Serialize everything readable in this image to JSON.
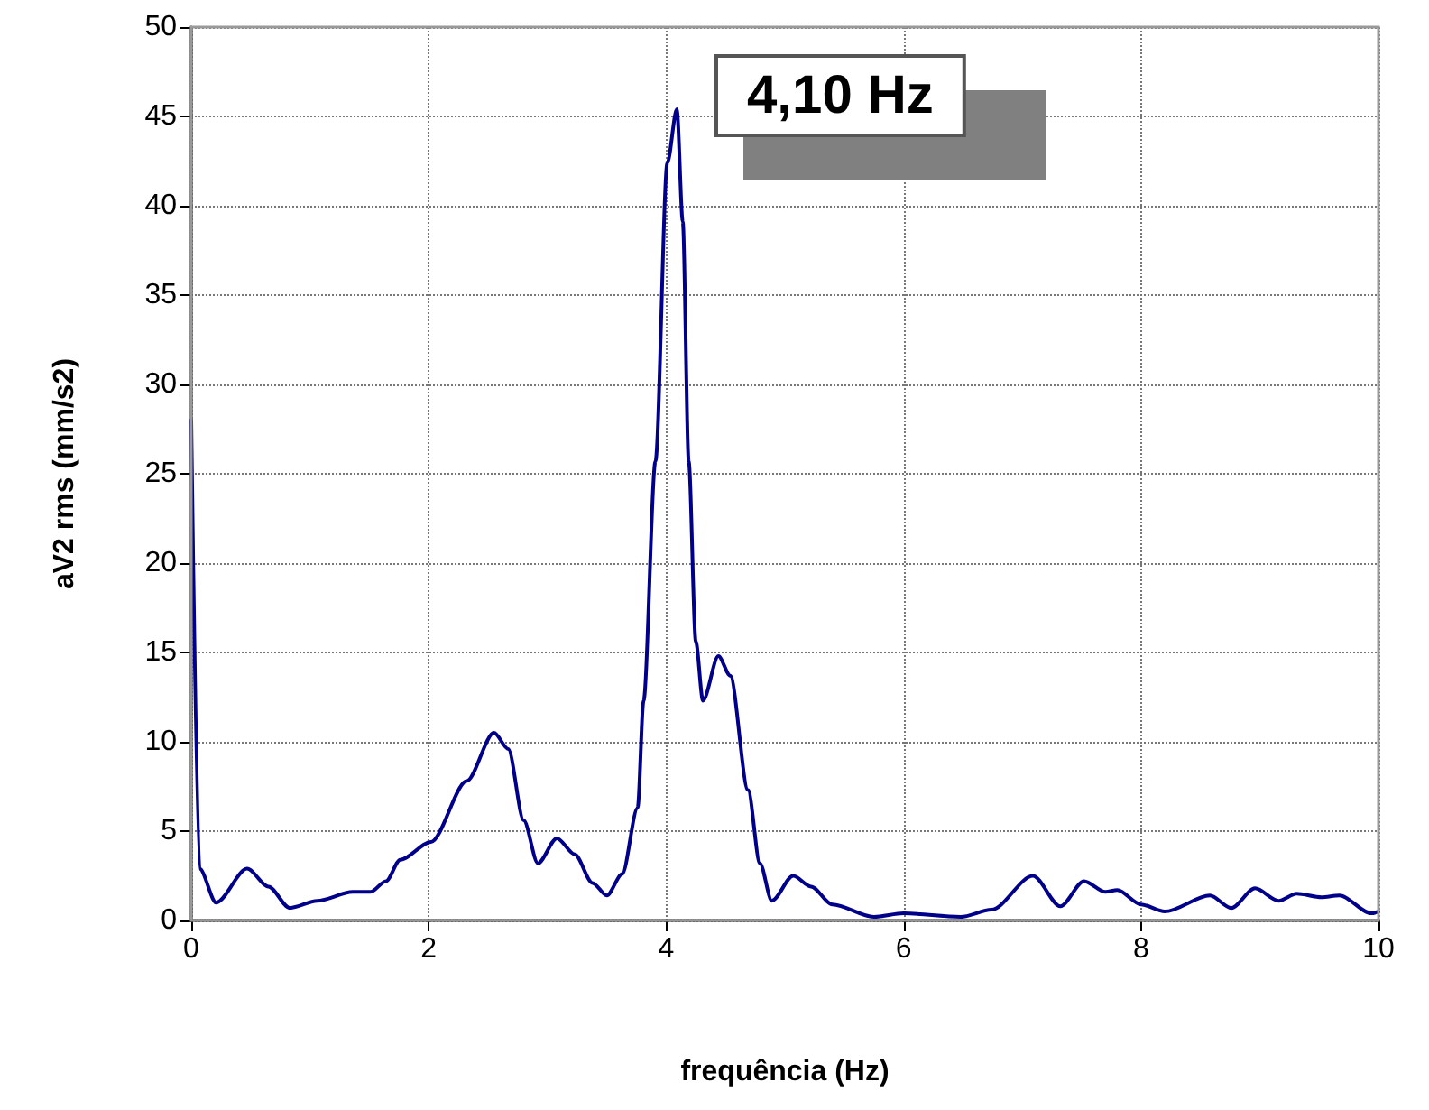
{
  "chart_data": {
    "type": "line",
    "xlabel": "frequência (Hz)",
    "ylabel": "aV2 rms (mm/s2)",
    "annotations": [
      "4,10 Hz"
    ],
    "series": [
      {
        "color": "#00008b",
        "x": [
          0,
          0.07,
          0.21,
          0.47,
          0.65,
          0.83,
          1.06,
          1.36,
          1.51,
          1.64,
          1.76,
          2.02,
          2.32,
          2.55,
          2.67,
          2.8,
          2.92,
          3.08,
          3.23,
          3.38,
          3.5,
          3.63,
          3.76,
          3.81,
          3.91,
          4.01,
          4.09,
          4.14,
          4.19,
          4.25,
          4.31,
          4.44,
          4.54,
          4.69,
          4.79,
          4.89,
          5.07,
          5.22,
          5.4,
          5.75,
          6,
          6.48,
          6.74,
          7.09,
          7.32,
          7.52,
          7.7,
          7.8,
          8,
          8.2,
          8.58,
          8.76,
          8.96,
          9.16,
          9.31,
          9.52,
          9.67,
          9.94,
          10
        ],
        "values": [
          28,
          2.9,
          1,
          2.9,
          1.9,
          0.7,
          1.1,
          1.6,
          1.6,
          2.2,
          3.4,
          4.4,
          7.8,
          10.5,
          9.6,
          5.6,
          3.2,
          4.6,
          3.7,
          2.1,
          1.4,
          2.6,
          6.3,
          12.3,
          25.7,
          42.4,
          45.4,
          39.1,
          25.7,
          15.6,
          12.3,
          14.8,
          13.7,
          7.3,
          3.2,
          1.1,
          2.5,
          1.9,
          0.9,
          0.2,
          0.4,
          0.2,
          0.6,
          2.5,
          0.8,
          2.2,
          1.6,
          1.7,
          0.9,
          0.5,
          1.4,
          0.7,
          1.8,
          1.1,
          1.5,
          1.3,
          1.4,
          0.4,
          0.5
        ]
      }
    ],
    "xlim": [
      0,
      10
    ],
    "xticks": [
      0,
      2,
      4,
      6,
      8,
      10
    ],
    "ylim": [
      0,
      50
    ],
    "yticks": [
      0,
      5,
      10,
      15,
      20,
      25,
      30,
      35,
      40,
      45,
      50
    ],
    "grid": true,
    "marker": "none",
    "line_style": "solid"
  }
}
